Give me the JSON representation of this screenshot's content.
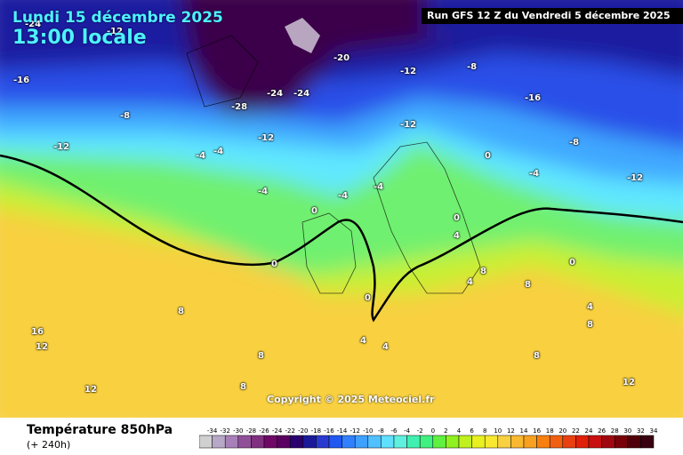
{
  "title": {
    "date": "Lundi 15 décembre 2025",
    "time": "13:00 locale"
  },
  "run": "Run GFS 12 Z du Vendredi 5 décembre 2025",
  "copyright": "Copyright © 2025 Meteociel.fr",
  "field": {
    "name": "Température 850hPa",
    "lead": "(+ 240h)"
  },
  "legend": {
    "ticks": [
      "-34",
      "-32",
      "-30",
      "-28",
      "-26",
      "-24",
      "-22",
      "-20",
      "-18",
      "-16",
      "-14",
      "-12",
      "-10",
      "-8",
      "-6",
      "-4",
      "-2",
      "0",
      "2",
      "4",
      "6",
      "8",
      "10",
      "12",
      "14",
      "16",
      "18",
      "20",
      "22",
      "24",
      "26",
      "28",
      "30",
      "32",
      "34"
    ],
    "colors": [
      "#d0d0d0",
      "#b8a8c8",
      "#a880b8",
      "#905098",
      "#803080",
      "#700868",
      "#5a0060",
      "#2a0070",
      "#1a1a98",
      "#2a3ad0",
      "#2058f0",
      "#3080ff",
      "#40a0ff",
      "#50c0ff",
      "#60e0ff",
      "#60f0e0",
      "#40f0b0",
      "#40f080",
      "#60f040",
      "#90f020",
      "#c0f020",
      "#e8f020",
      "#f8e830",
      "#f8d040",
      "#f8b830",
      "#f8a020",
      "#f88010",
      "#f06010",
      "#e84010",
      "#e02008",
      "#c81010",
      "#a00810",
      "#780008",
      "#500008",
      "#380010"
    ]
  },
  "map": {
    "colors": {
      "cold_deep": "#3a0048",
      "cold": "#1a1aa0",
      "blue": "#2a50e8",
      "light_blue": "#40a8ff",
      "cyan": "#60e8ff",
      "green": "#70f070",
      "yellowgreen": "#c8f030",
      "yellow": "#f8f060",
      "orange": "#f8d040"
    },
    "labels": [
      "-24",
      "-12",
      "-16",
      "-8",
      "-12",
      "-20",
      "-24",
      "-12",
      "-4",
      "-8",
      "-16",
      "-12",
      "-28",
      "-24",
      "-12",
      "-4",
      "-4",
      "-4",
      "0",
      "-4",
      "0",
      "0",
      "0",
      "4",
      "8",
      "4",
      "8",
      "12",
      "16",
      "12",
      "8",
      "8",
      "8",
      "4",
      "0",
      "-12",
      "-8",
      "-4",
      "0",
      "8",
      "4",
      "12",
      "8",
      "4"
    ]
  }
}
